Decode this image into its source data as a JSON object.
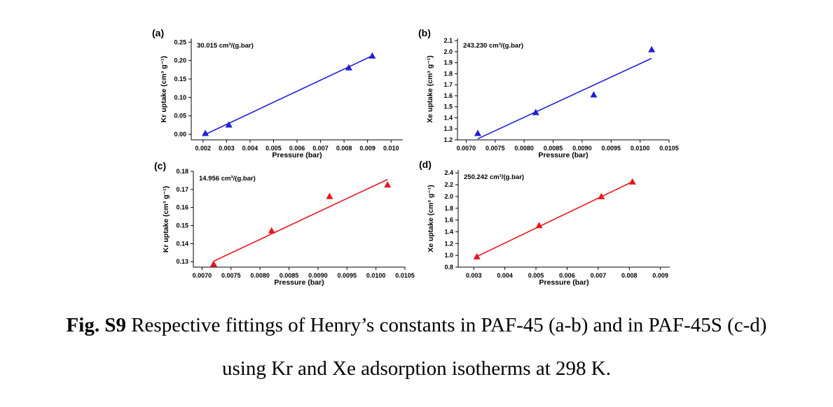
{
  "caption": {
    "label": "Fig. S9",
    "line1": "Respective fittings of Henry’s constants in PAF-45 (a-b) and in PAF-45S (c-d)",
    "line2": "using Kr and Xe adsorption isotherms at 298 K."
  },
  "chart_data": [
    {
      "panel": "(a)",
      "type": "scatter",
      "annotation": "30.015 cm³/(g.bar)",
      "xlabel": "Pressure (bar)",
      "ylabel": "Kr uptake (cm³ g⁻¹)",
      "xlim": [
        0.0015,
        0.0105
      ],
      "ylim": [
        -0.015,
        0.26
      ],
      "xticks": [
        0.002,
        0.003,
        0.004,
        0.005,
        0.006,
        0.007,
        0.008,
        0.009,
        0.01
      ],
      "xtick_labels": [
        "0.002",
        "0.003",
        "0.004",
        "0.005",
        "0.006",
        "0.007",
        "0.008",
        "0.009",
        "0.010"
      ],
      "yticks": [
        0.0,
        0.05,
        0.1,
        0.15,
        0.2,
        0.25
      ],
      "ytick_labels": [
        "0.00",
        "0.05",
        "0.10",
        "0.15",
        "0.20",
        "0.25"
      ],
      "color": "#1f1fd6",
      "points": [
        [
          0.0021,
          0.003
        ],
        [
          0.0031,
          0.026
        ],
        [
          0.0082,
          0.181
        ],
        [
          0.0092,
          0.213
        ]
      ],
      "fit": [
        [
          0.0021,
          0.0
        ],
        [
          0.0092,
          0.213
        ]
      ]
    },
    {
      "panel": "(b)",
      "type": "scatter",
      "annotation": "243.230 cm³/(g.bar)",
      "xlabel": "Pressure (bar)",
      "ylabel": "Xe uptake (cm³ g⁻¹)",
      "xlim": [
        0.00685,
        0.0105
      ],
      "ylim": [
        1.2,
        2.12
      ],
      "xticks": [
        0.007,
        0.0075,
        0.008,
        0.0085,
        0.009,
        0.0095,
        0.01,
        0.0105
      ],
      "xtick_labels": [
        "0.0070",
        "0.0075",
        "0.0080",
        "0.0085",
        "0.0090",
        "0.0095",
        "0.0100",
        "0.0105"
      ],
      "yticks": [
        1.2,
        1.3,
        1.4,
        1.5,
        1.6,
        1.7,
        1.8,
        1.9,
        2.0,
        2.1
      ],
      "ytick_labels": [
        "1.2",
        "1.3",
        "1.4",
        "1.5",
        "1.6",
        "1.7",
        "1.8",
        "1.9",
        "2.0",
        "2.1"
      ],
      "color": "#1f1fd6",
      "points": [
        [
          0.0072,
          1.26
        ],
        [
          0.0082,
          1.45
        ],
        [
          0.0092,
          1.61
        ],
        [
          0.0102,
          2.02
        ]
      ],
      "fit": [
        [
          0.0072,
          1.21
        ],
        [
          0.0102,
          1.94
        ]
      ]
    },
    {
      "panel": "(c)",
      "type": "scatter",
      "annotation": "14.956 cm³/(g.bar)",
      "xlabel": "Pressure (bar)",
      "ylabel": "Kr uptake (cm³ g⁻¹)",
      "xlim": [
        0.00685,
        0.0105
      ],
      "ylim": [
        0.127,
        0.18
      ],
      "xticks": [
        0.007,
        0.0075,
        0.008,
        0.0085,
        0.009,
        0.0095,
        0.01,
        0.0105
      ],
      "xtick_labels": [
        "0.0070",
        "0.0075",
        "0.0080",
        "0.0085",
        "0.0090",
        "0.0095",
        "0.0100",
        "0.0105"
      ],
      "yticks": [
        0.13,
        0.14,
        0.15,
        0.16,
        0.17,
        0.18
      ],
      "ytick_labels": [
        "0.13",
        "0.14",
        "0.15",
        "0.16",
        "0.17",
        "0.18"
      ],
      "color": "#e8141c",
      "points": [
        [
          0.0072,
          0.1288
        ],
        [
          0.0082,
          0.1472
        ],
        [
          0.0092,
          0.1662
        ],
        [
          0.0102,
          0.1726
        ]
      ],
      "fit": [
        [
          0.0072,
          0.1303
        ],
        [
          0.0102,
          0.1755
        ]
      ]
    },
    {
      "panel": "(d)",
      "type": "scatter",
      "annotation": "250.242 cm³/(g.bar)",
      "xlabel": "Pressure (bar)",
      "ylabel": "Xe uptake (cm³ g⁻¹)",
      "xlim": [
        0.0025,
        0.0093
      ],
      "ylim": [
        0.8,
        2.45
      ],
      "xticks": [
        0.003,
        0.004,
        0.005,
        0.006,
        0.007,
        0.008,
        0.009
      ],
      "xtick_labels": [
        "0.003",
        "0.004",
        "0.005",
        "0.006",
        "0.007",
        "0.008",
        "0.009"
      ],
      "yticks": [
        0.8,
        1.0,
        1.2,
        1.4,
        1.6,
        1.8,
        2.0,
        2.2,
        2.4
      ],
      "ytick_labels": [
        "0.8",
        "1.0",
        "1.2",
        "1.4",
        "1.6",
        "1.8",
        "2.0",
        "2.2",
        "2.4"
      ],
      "color": "#e8141c",
      "points": [
        [
          0.0031,
          0.98
        ],
        [
          0.0051,
          1.51
        ],
        [
          0.0071,
          2.0
        ],
        [
          0.0081,
          2.25
        ]
      ],
      "fit": [
        [
          0.0031,
          0.98
        ],
        [
          0.0081,
          2.25
        ]
      ]
    }
  ]
}
